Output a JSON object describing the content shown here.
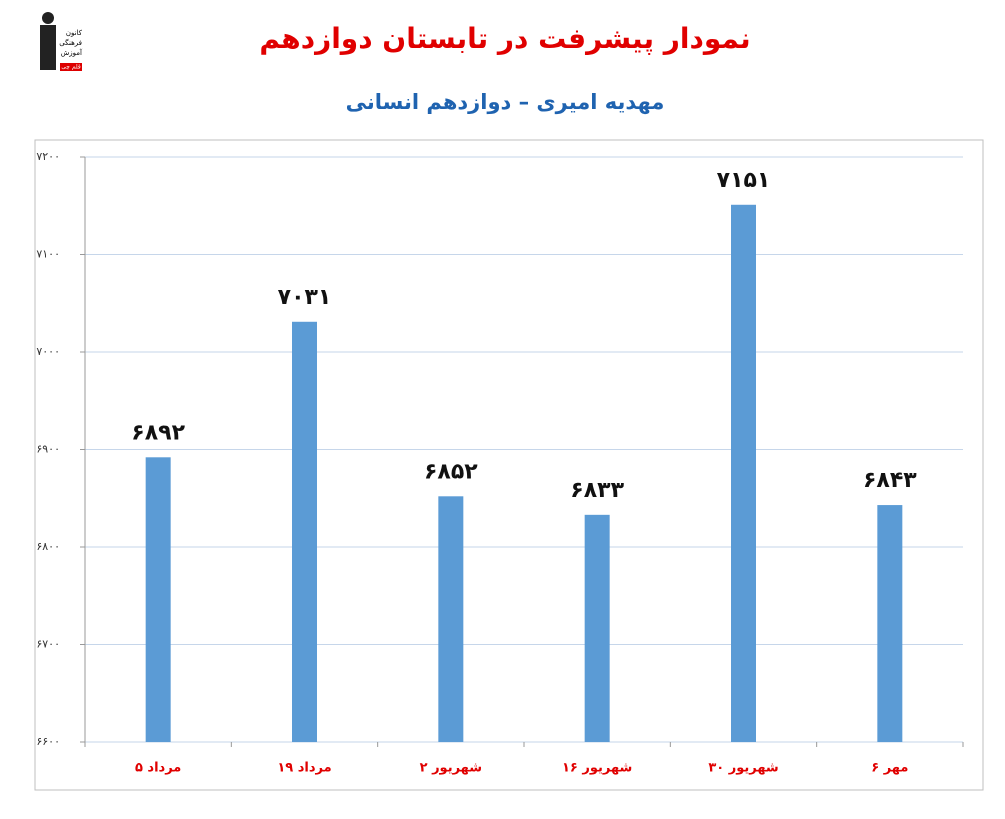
{
  "logo": {
    "lines": [
      "کانون",
      "فرهنگی",
      "آموزش",
      "قلم چی"
    ]
  },
  "chart_data": {
    "type": "bar",
    "title": "نمودار پیشرفت در تابستان دوازدهم",
    "subtitle": "مهدیه امیری – دوازدهم انسانی",
    "categories": [
      "۵ مرداد",
      "۱۹ مرداد",
      "۲ شهریور",
      "۱۶ شهریور",
      "۳۰ شهریور",
      "۶ مهر"
    ],
    "values": [
      6892,
      7031,
      6852,
      6833,
      7151,
      6843
    ],
    "value_labels": [
      "۶۸۹۲",
      "۷۰۳۱",
      "۶۸۵۲",
      "۶۸۳۳",
      "۷۱۵۱",
      "۶۸۴۳"
    ],
    "color": "#5b9bd5",
    "ylim": [
      6600,
      7200
    ],
    "yticks": [
      {
        "value": 6600,
        "label": "۶۶۰۰"
      },
      {
        "value": 6700,
        "label": "۶۷۰۰"
      },
      {
        "value": 6800,
        "label": "۶۸۰۰"
      },
      {
        "value": 6900,
        "label": "۶۹۰۰"
      },
      {
        "value": 7000,
        "label": "۷۰۰۰"
      },
      {
        "value": 7100,
        "label": "۷۱۰۰"
      },
      {
        "value": 7200,
        "label": "۷۲۰۰"
      }
    ],
    "grid": true
  }
}
